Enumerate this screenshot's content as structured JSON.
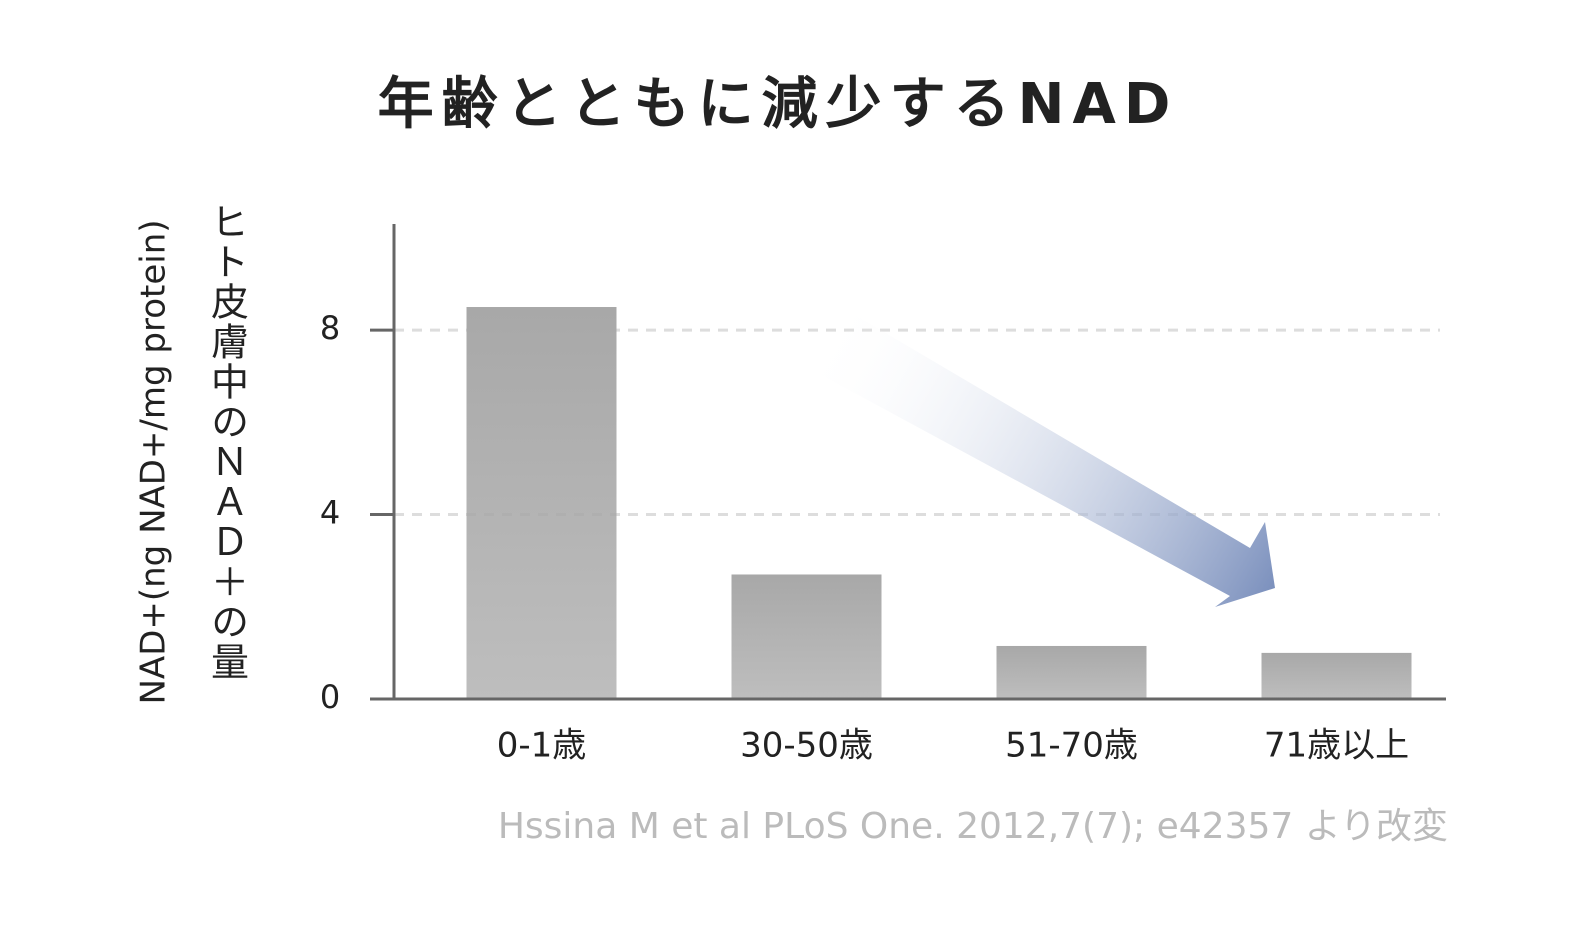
{
  "chart_data": {
    "type": "bar",
    "title": "年齢とともに減少するNAD",
    "y_label": "NAD+(ng NAD+/mg protein)",
    "y_label_2": "ヒト皮膚中のＮＡＤ＋の量",
    "categories": [
      "0-1歳",
      "30-50歳",
      "51-70歳",
      "71歳以上"
    ],
    "values": [
      8.5,
      2.7,
      1.15,
      1.0
    ],
    "color": "#a8a8a8",
    "ylim": [
      0,
      10.3
    ],
    "yticks": [
      0,
      4,
      8
    ],
    "grid": true,
    "source": "Hssina M et al PLoS One. 2012,7(7); e42357 より改変"
  }
}
